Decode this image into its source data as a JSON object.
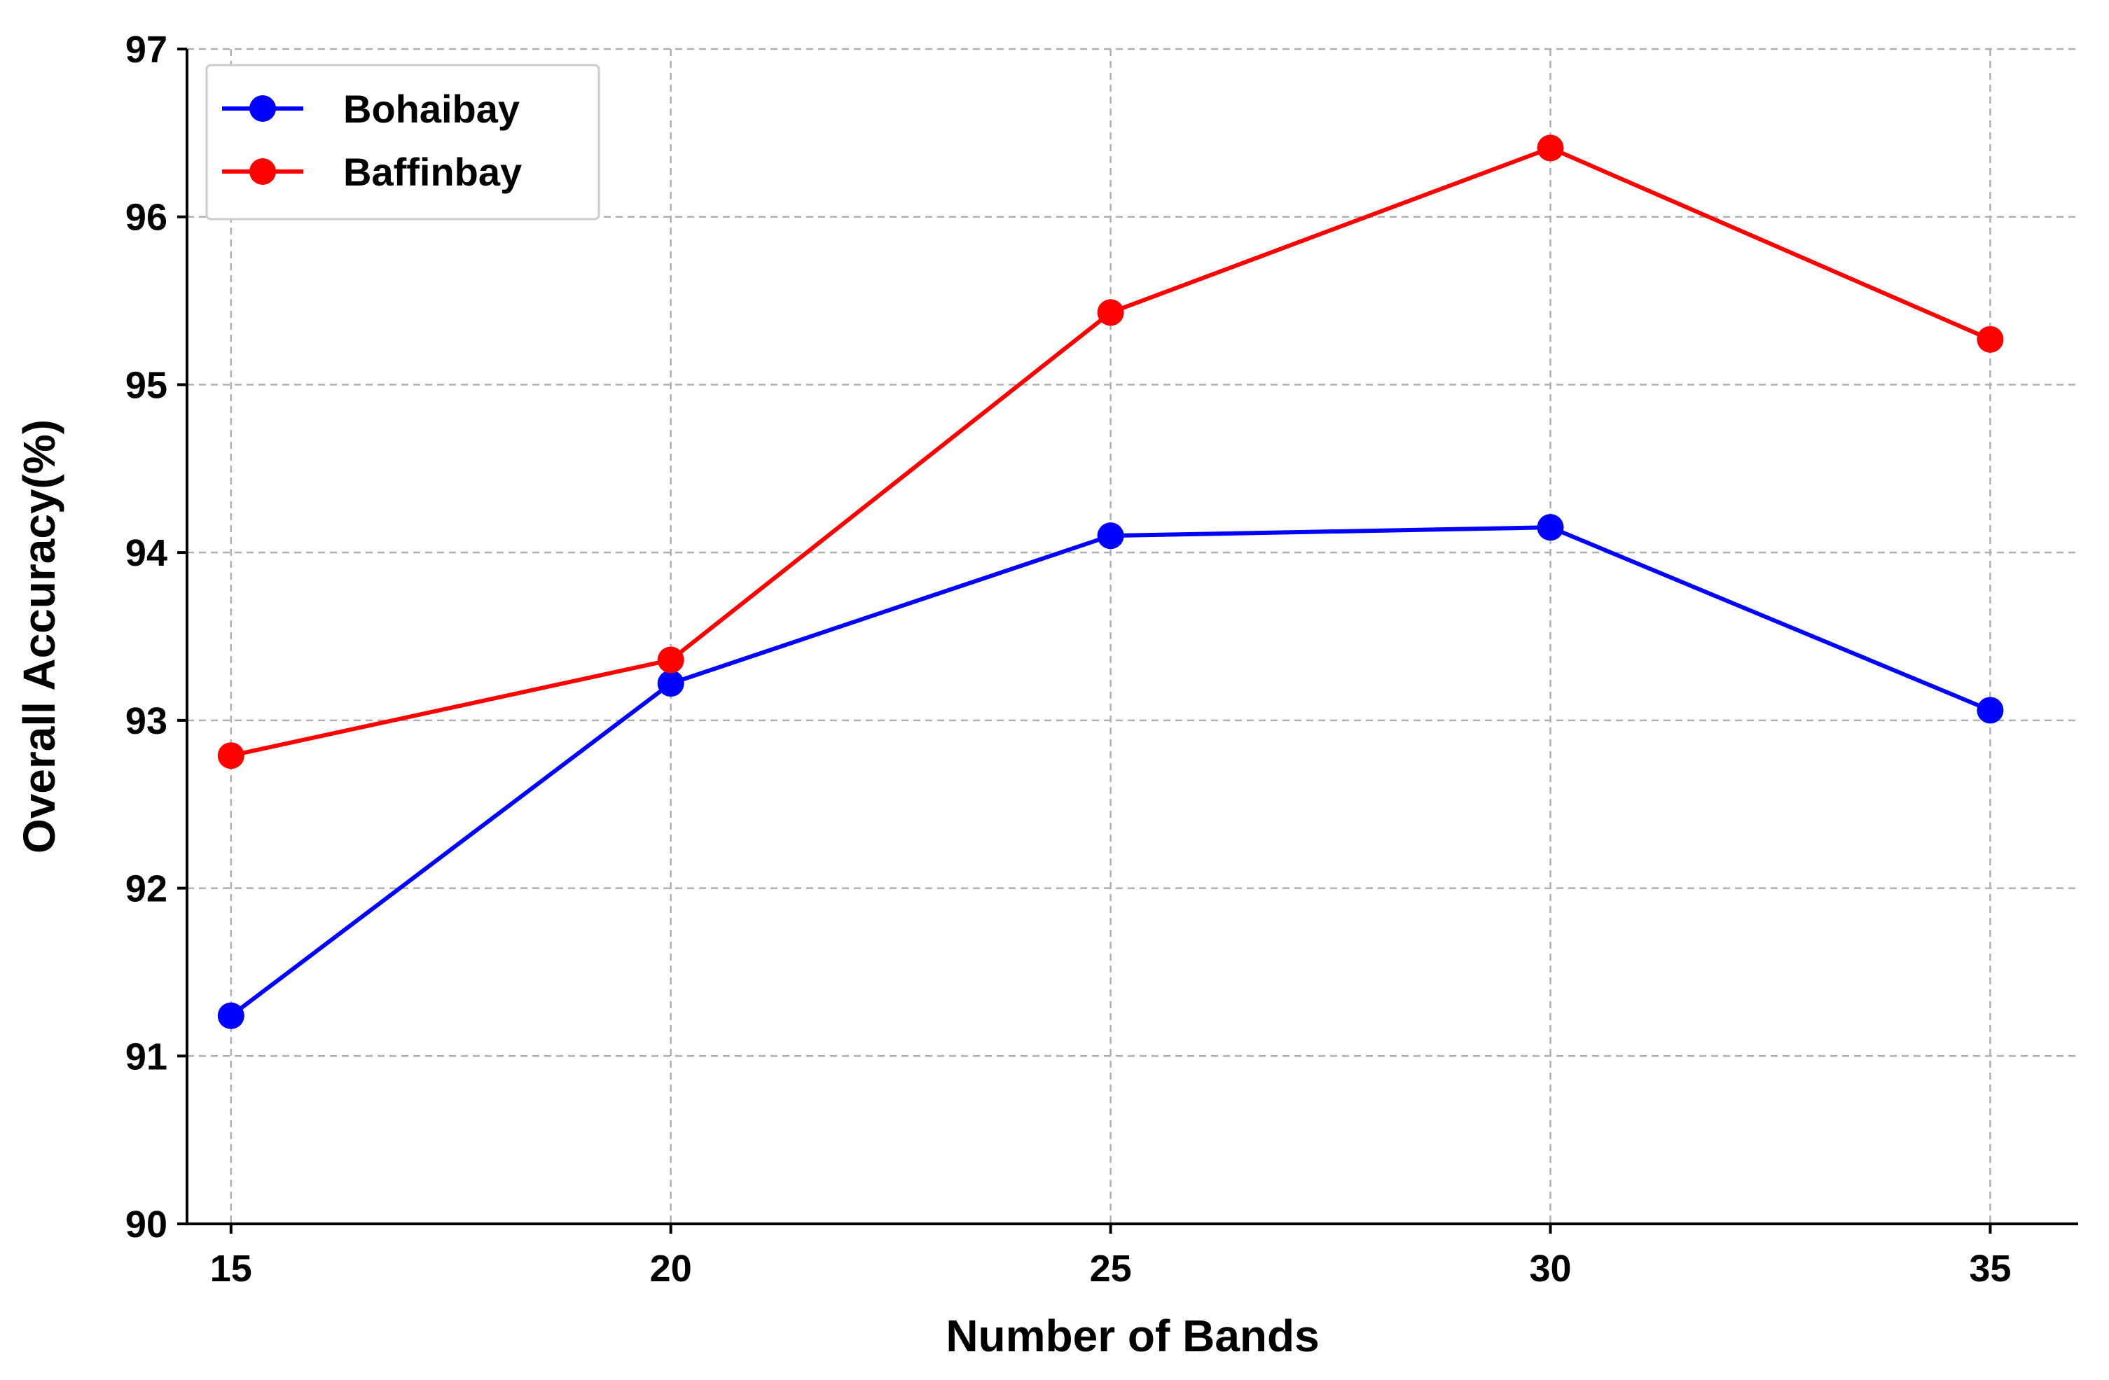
{
  "chart_data": {
    "type": "line",
    "title": "",
    "xlabel": "Number of Bands",
    "ylabel": "Overall Accuracy(%)",
    "x": [
      15,
      20,
      25,
      30,
      35
    ],
    "x_ticks": [
      "15",
      "20",
      "25",
      "30",
      "35"
    ],
    "y_ticks": [
      "90",
      "91",
      "92",
      "93",
      "94",
      "95",
      "96",
      "97"
    ],
    "xlim": [
      14.5,
      36
    ],
    "ylim": [
      90,
      97
    ],
    "grid": true,
    "legend_position": "top-left",
    "series": [
      {
        "name": "Bohaibay",
        "color": "#0000ff",
        "marker": "circle",
        "values": [
          91.24,
          93.22,
          94.1,
          94.15,
          93.06
        ]
      },
      {
        "name": "Baffinbay",
        "color": "#ff0000",
        "marker": "circle",
        "values": [
          92.79,
          93.36,
          95.43,
          96.41,
          95.27
        ]
      }
    ]
  }
}
